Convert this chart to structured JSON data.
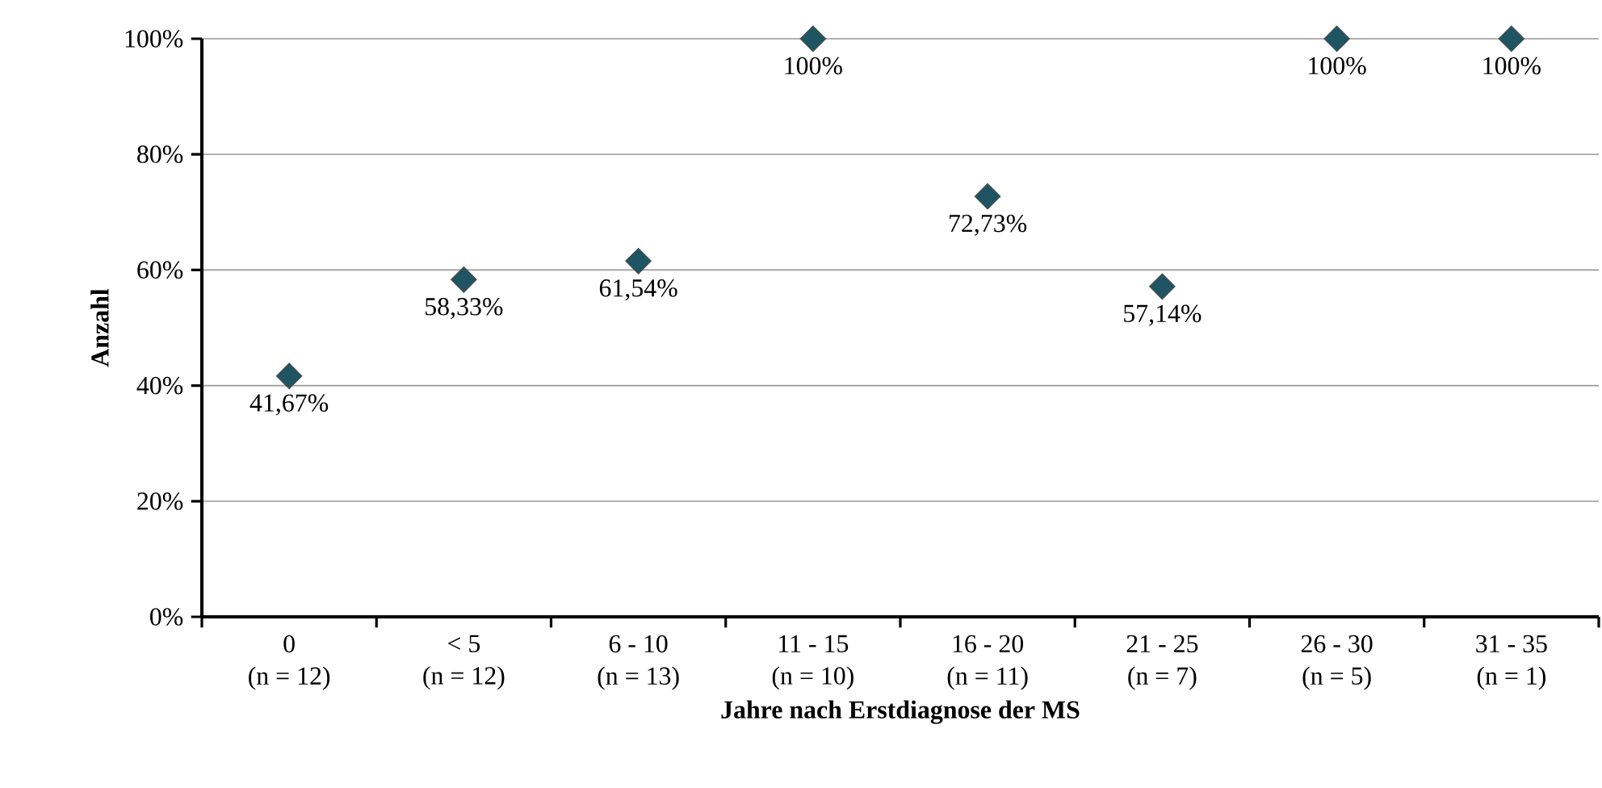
{
  "chart_data": {
    "type": "scatter",
    "xlabel": "Jahre nach Erstdiagnose der MS",
    "ylabel": "Anzahl",
    "categories": [
      "0\n(n = 12)",
      "< 5\n(n = 12)",
      "6 - 10\n(n = 13)",
      "11 - 15\n(n = 10)",
      "16 - 20\n(n = 11)",
      "21 - 25\n(n = 7)",
      "26 - 30\n(n = 5)",
      "31 - 35\n(n = 1)"
    ],
    "values": [
      41.67,
      58.33,
      61.54,
      100,
      72.73,
      57.14,
      100,
      100
    ],
    "value_labels": [
      "41,67%",
      "58,33%",
      "61,54%",
      "100%",
      "72,73%",
      "57,14%",
      "100%",
      "100%"
    ],
    "color": "#1f5563",
    "marker": "diamond",
    "grid": "y",
    "ylim": [
      0,
      100
    ],
    "yticks": [
      {
        "value": 0,
        "label": "0%"
      },
      {
        "value": 20,
        "label": "20%"
      },
      {
        "value": 40,
        "label": "40%"
      },
      {
        "value": 60,
        "label": "60%"
      },
      {
        "value": 80,
        "label": "80%"
      },
      {
        "value": 100,
        "label": "100%"
      }
    ]
  }
}
